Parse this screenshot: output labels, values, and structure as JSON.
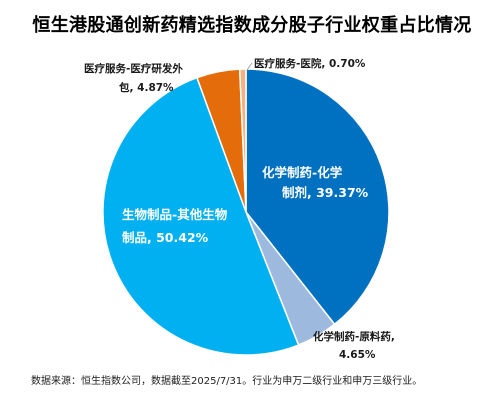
{
  "chart_data": {
    "type": "pie",
    "title": "恒生港股通创新药精选指数成分股子行业权重占比情况",
    "slices": [
      {
        "label": "化学制药-化学制剂",
        "value": 39.37,
        "value_text": "39.37%",
        "color": "#0070C0"
      },
      {
        "label": "化学制药-原料药",
        "value": 4.65,
        "value_text": "4.65%",
        "color": "#9DB9DE"
      },
      {
        "label": "生物制品-其他生物制品",
        "value": 50.42,
        "value_text": "50.42%",
        "color": "#00B0F0"
      },
      {
        "label": "医疗服务-医疗研发外包",
        "value": 4.87,
        "value_text": "4.87%",
        "color": "#E46C0A"
      },
      {
        "label": "医疗服务-医院",
        "value": 0.7,
        "value_text": "0.70%",
        "color": "#F4B183"
      }
    ]
  },
  "footnote": "数据来源：恒生指数公司，数据截至2025/7/31。行业为申万二级行业和申万三级行业。"
}
